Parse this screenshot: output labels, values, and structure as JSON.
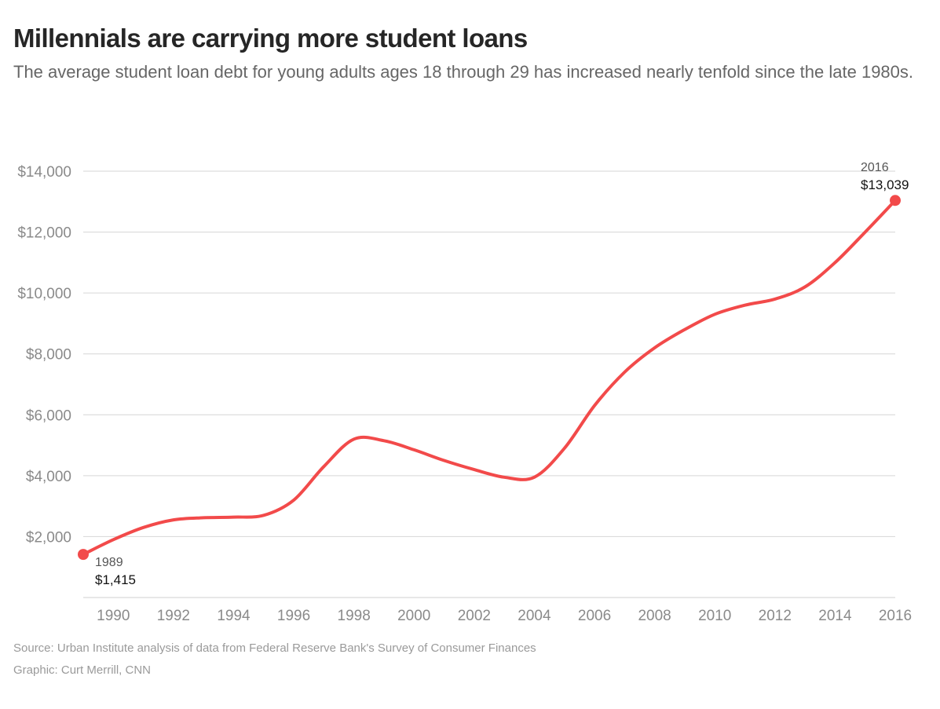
{
  "header": {
    "title": "Millennials are carrying more student loans",
    "subtitle": "The average student loan debt for young adults ages 18 through 29 has increased nearly tenfold since the late 1980s."
  },
  "footer": {
    "source": "Source: Urban Institute analysis of data from Federal Reserve Bank's Survey of Consumer Finances",
    "credit": "Graphic: Curt Merrill, CNN"
  },
  "chart_data": {
    "type": "line",
    "title": "Millennials are carrying more student loans",
    "subtitle": "The average student loan debt for young adults ages 18 through 29 has increased nearly tenfold since the late 1980s.",
    "xlabel": "",
    "ylabel": "",
    "xlim": [
      1989,
      2016
    ],
    "ylim": [
      0,
      14000
    ],
    "x_ticks": [
      1990,
      1992,
      1994,
      1996,
      1998,
      2000,
      2002,
      2004,
      2006,
      2008,
      2010,
      2012,
      2014,
      2016
    ],
    "y_ticks": [
      2000,
      4000,
      6000,
      8000,
      10000,
      12000,
      14000
    ],
    "y_tick_labels": [
      "$2,000",
      "$4,000",
      "$6,000",
      "$8,000",
      "$10,000",
      "$12,000",
      "$14,000"
    ],
    "grid": "horizontal",
    "line_color": "#f24a4a",
    "series": [
      {
        "x": [
          1989,
          1990,
          1991,
          1992,
          1993,
          1994,
          1995,
          1996,
          1997,
          1998,
          1999,
          2000,
          2001,
          2002,
          2003,
          2004,
          2005,
          2006,
          2007,
          2008,
          2009,
          2010,
          2011,
          2012,
          2013,
          2014,
          2015,
          2016
        ],
        "y": [
          1415,
          1900,
          2300,
          2550,
          2620,
          2640,
          2700,
          3200,
          4300,
          5200,
          5150,
          4850,
          4500,
          4200,
          3950,
          3950,
          4900,
          6300,
          7400,
          8200,
          8800,
          9300,
          9600,
          9800,
          10200,
          11000,
          12000,
          13039
        ]
      }
    ],
    "annotations": [
      {
        "year": "1989",
        "value": "$1,415",
        "x": 1989,
        "y": 1415
      },
      {
        "year": "2016",
        "value": "$13,039",
        "x": 2016,
        "y": 13039
      }
    ]
  }
}
